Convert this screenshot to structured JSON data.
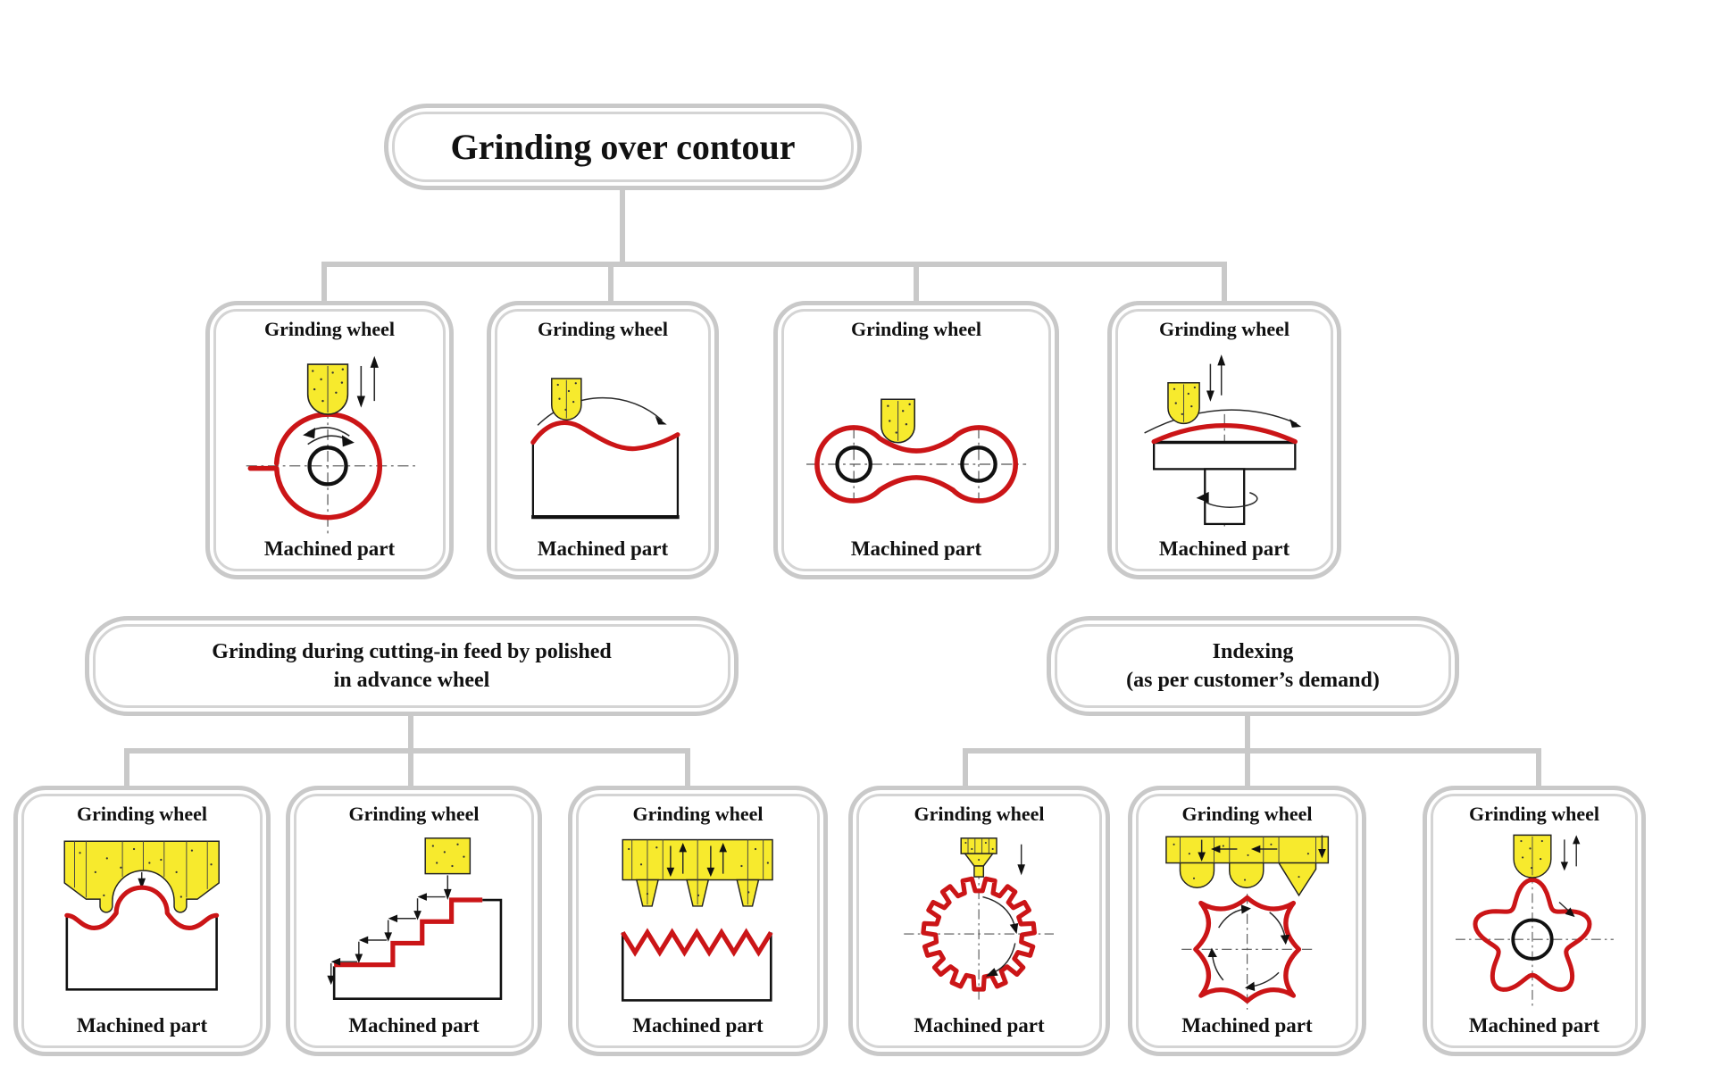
{
  "title": "Grinding over contour",
  "level2": {
    "left": {
      "line1": "Grinding during cutting-in feed by polished",
      "line2": "in advance wheel"
    },
    "right": {
      "line1": "Indexing",
      "line2": "(as per customer’s demand)"
    }
  },
  "cells": [
    {
      "id": "cam-plunge",
      "wheel": "Grinding wheel",
      "part": "Machined part"
    },
    {
      "id": "wavy-surface",
      "wheel": "Grinding wheel",
      "part": "Machined part"
    },
    {
      "id": "link-contour",
      "wheel": "Grinding wheel",
      "part": "Machined part"
    },
    {
      "id": "dome-disc",
      "wheel": "Grinding wheel",
      "part": "Machined part"
    },
    {
      "id": "form-profile",
      "wheel": "Grinding wheel",
      "part": "Machined part"
    },
    {
      "id": "staircase",
      "wheel": "Grinding wheel",
      "part": "Machined part"
    },
    {
      "id": "thread-comb",
      "wheel": "Grinding wheel",
      "part": "Machined part"
    },
    {
      "id": "gear",
      "wheel": "Grinding wheel",
      "part": "Machined part"
    },
    {
      "id": "four-lobe",
      "wheel": "Grinding wheel",
      "part": "Machined part"
    },
    {
      "id": "five-lobe",
      "wheel": "Grinding wheel",
      "part": "Machined part"
    }
  ],
  "colors": {
    "outline_gray": "#c9c9c9",
    "part_red": "#cb1517",
    "wheel_yellow": "#f7ea2d",
    "text_black": "#111111"
  }
}
